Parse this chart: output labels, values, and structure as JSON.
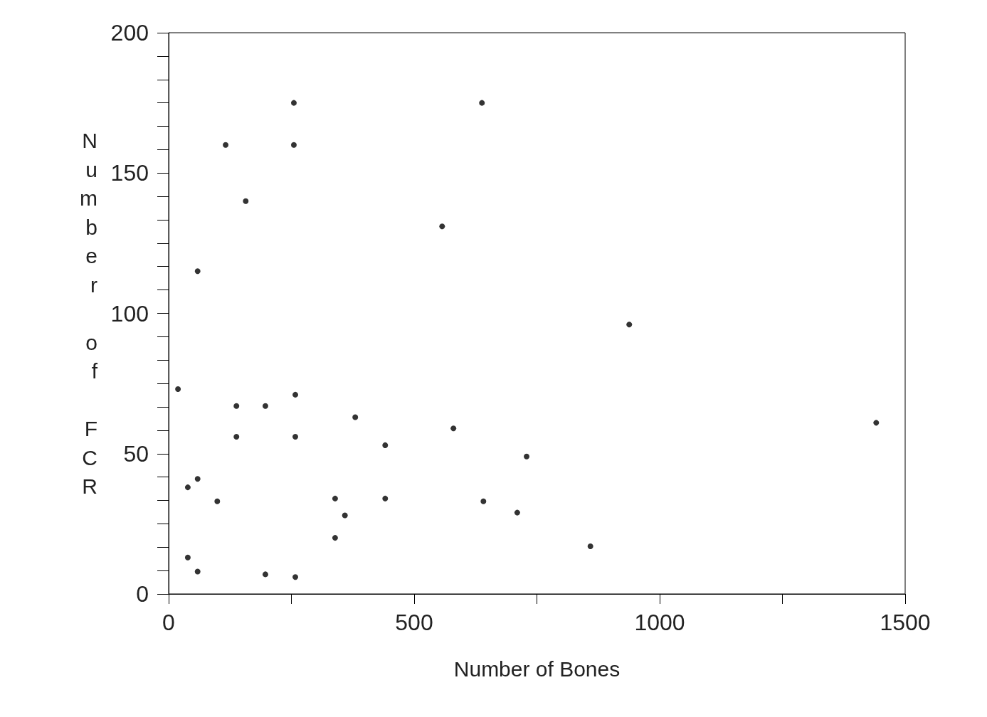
{
  "chart_data": {
    "type": "scatter",
    "xlabel": "Number of Bones",
    "ylabel": "Number of FCR",
    "x": [
      19,
      39,
      39,
      59,
      59,
      59,
      99,
      116,
      138,
      138,
      157,
      197,
      197,
      255,
      255,
      258,
      258,
      258,
      339,
      339,
      359,
      380,
      441,
      441,
      557,
      580,
      638,
      641,
      710,
      729,
      859,
      938,
      1441
    ],
    "values": [
      73,
      38,
      13,
      41,
      115,
      8,
      33,
      160,
      67,
      56,
      140,
      67,
      7,
      175,
      160,
      71,
      56,
      6,
      34,
      20,
      28,
      63,
      53,
      34,
      131,
      59,
      175,
      33,
      29,
      49,
      17,
      96,
      61
    ],
    "color": "#000000",
    "marker": "circle",
    "grid": false,
    "xlim": [
      0,
      1500
    ],
    "xticks": [
      0,
      {
        "value": 250,
        "label": null
      },
      500,
      {
        "value": 750,
        "label": null
      },
      1000,
      {
        "value": 1250,
        "label": null
      },
      1500
    ],
    "ylim": [
      0,
      200
    ],
    "yticks": [
      0,
      {
        "value": 8.33,
        "label": null
      },
      {
        "value": 16.67,
        "label": null
      },
      {
        "value": 25,
        "label": null
      },
      {
        "value": 33.33,
        "label": null
      },
      {
        "value": 41.67,
        "label": null
      },
      50,
      {
        "value": 58.33,
        "label": null
      },
      {
        "value": 66.67,
        "label": null
      },
      {
        "value": 75,
        "label": null
      },
      {
        "value": 83.33,
        "label": null
      },
      {
        "value": 91.67,
        "label": null
      },
      100,
      {
        "value": 108.33,
        "label": null
      },
      {
        "value": 116.67,
        "label": null
      },
      {
        "value": 125,
        "label": null
      },
      {
        "value": 133.33,
        "label": null
      },
      {
        "value": 141.67,
        "label": null
      },
      150,
      {
        "value": 158.33,
        "label": null
      },
      {
        "value": 166.67,
        "label": null
      },
      {
        "value": 175,
        "label": null
      },
      {
        "value": 183.33,
        "label": null
      },
      {
        "value": 191.67,
        "label": null
      },
      200
    ]
  }
}
